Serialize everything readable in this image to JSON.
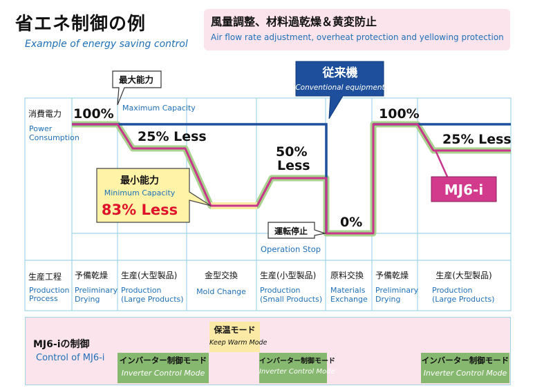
{
  "header": {
    "title_jp": "省エネ制御の例",
    "title_en": "Example of energy saving control",
    "banner_jp": "風量調整、材料過乾燥＆黄変防止",
    "banner_en": "Air flow rate adjustment, overheat protection and yellowing protection"
  },
  "callouts": {
    "max_capacity_jp": "最大能力",
    "max_capacity_en": "Maximum Capacity",
    "conventional_jp": "従来機",
    "conventional_en": "Conventional equipment",
    "min_capacity_jp": "最小能力",
    "min_capacity_en": "Minimum Capacity",
    "min_capacity_saving": "83% Less",
    "op_stop_jp": "運転停止",
    "op_stop_en": "Operation Stop",
    "product_badge": "MJ6-i"
  },
  "axis": {
    "power_jp": "消費電力",
    "power_en_1": "Power",
    "power_en_2": "Consumption",
    "process_jp": "生産工程",
    "process_en_1": "Production",
    "process_en_2": "Process"
  },
  "level_labels": {
    "p100_a": "100%",
    "less25_a": "25% Less",
    "less50_1": "50%",
    "less50_2": "Less",
    "zero": "0%",
    "p100_b": "100%",
    "less25_b": "25% Less"
  },
  "stages": [
    {
      "jp": "予備乾燥",
      "en1": "Preliminary",
      "en2": "Drying"
    },
    {
      "jp": "生産(大型製品)",
      "en1": "Production",
      "en2": "(Large Products)"
    },
    {
      "jp": "金型交換",
      "en1": "Mold Change",
      "en2": ""
    },
    {
      "jp": "生産(小型製品)",
      "en1": "Production",
      "en2": "(Small Products)"
    },
    {
      "jp": "原料交換",
      "en1": "Materials",
      "en2": "Exchange"
    },
    {
      "jp": "予備乾燥",
      "en1": "Preliminary",
      "en2": "Drying"
    },
    {
      "jp": "生産(大型製品)",
      "en1": "Production",
      "en2": "(Large Products)"
    }
  ],
  "control": {
    "title_jp": "MJ6-iの制御",
    "title_en": "Control of MJ6-i",
    "keep_warm_jp": "保温モード",
    "keep_warm_en": "Keep Warm Mode",
    "modes": [
      {
        "jp": "インバーター制御モード",
        "en": "Inverter Control Mode"
      },
      {
        "jp": "インバーター制御モード",
        "en": "Inverter Control Mode"
      },
      {
        "jp": "インバーター制御モード",
        "en": "Inverter Control Mode"
      }
    ]
  },
  "colors": {
    "grid": "#9fd4e8",
    "conventional_line": "#1d4f9c",
    "mj6i_line": "#c8358a",
    "mj6i_glow": "#a8d48f",
    "min_glow": "#fbe9a6",
    "callout_fill": "#fff3a8",
    "badge_fill": "#d23b8c"
  }
}
